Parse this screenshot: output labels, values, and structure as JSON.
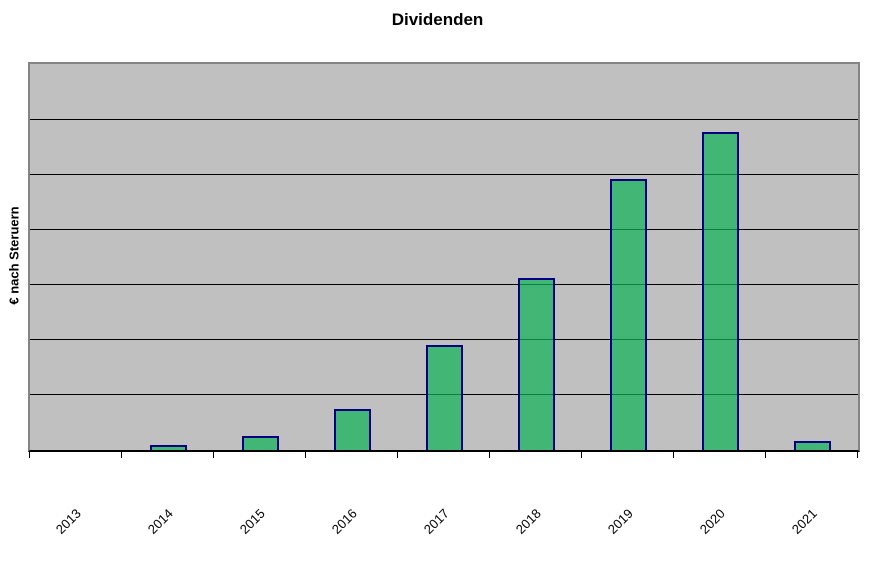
{
  "title": "Dividenden",
  "chart_data": {
    "type": "bar",
    "title": "Dividenden",
    "categories": [
      "2013",
      "2014",
      "2015",
      "2016",
      "2017",
      "2018",
      "2019",
      "2020",
      "2021"
    ],
    "values": [
      0,
      0.09,
      0.25,
      0.75,
      1.9,
      3.12,
      4.92,
      5.76,
      0.16
    ],
    "xlabel": "",
    "ylabel": "€ nach Steruern",
    "ylim": [
      0,
      7
    ],
    "y_axis_tick_labels": "none shown; values estimated in gridline units",
    "gridlines": "horizontal, 6 internal lines, black",
    "legend_position": "none",
    "colors": {
      "bar_fill": "#41B575",
      "bar_border": "#000080",
      "plot_background": "#C0C0C0",
      "plot_border": "#848484",
      "gridline": "#000000",
      "axis_line": "#000000",
      "text": "#000000",
      "page_background": "#FFFFFF"
    }
  }
}
